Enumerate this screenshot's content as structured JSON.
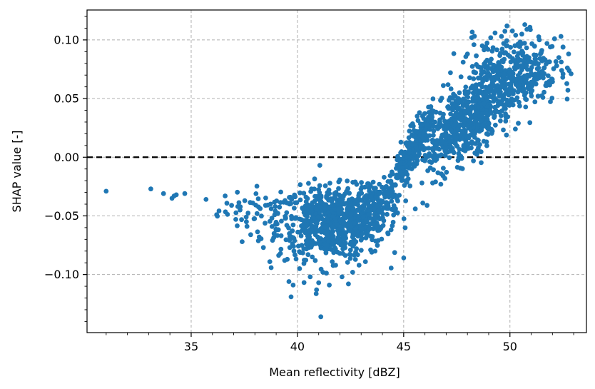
{
  "chart_data": {
    "type": "scatter",
    "title": "",
    "xlabel": "Mean reflectivity [dBZ]",
    "ylabel": "SHAP value [-]",
    "xlim": [
      30.1,
      53.6
    ],
    "ylim": [
      -0.1495,
      0.1255
    ],
    "xticks": [
      35,
      40,
      45,
      50
    ],
    "xtick_labels": [
      "35",
      "40",
      "45",
      "50"
    ],
    "yticks": [
      0.1,
      0.05,
      0.0,
      -0.05,
      -0.1
    ],
    "ytick_labels": [
      "0.10",
      "0.05",
      "0.00",
      "−0.05",
      "−0.10"
    ],
    "grid": true,
    "grid_style": "dashed",
    "reference_line": {
      "y": 0.0,
      "style": "dashed",
      "color": "#000000"
    },
    "marker_color": "#1f77b4",
    "points_listed": [
      [
        31.0,
        -0.029
      ],
      [
        33.1,
        -0.027
      ],
      [
        33.7,
        -0.031
      ],
      [
        34.1,
        -0.035
      ],
      [
        34.2,
        -0.033
      ],
      [
        34.3,
        -0.032
      ],
      [
        34.7,
        -0.031
      ],
      [
        35.7,
        -0.036
      ],
      [
        36.2,
        -0.049
      ],
      [
        36.6,
        -0.033
      ],
      [
        36.9,
        -0.041
      ],
      [
        37.1,
        -0.053
      ],
      [
        37.3,
        -0.045
      ],
      [
        37.4,
        -0.072
      ],
      [
        37.6,
        -0.055
      ],
      [
        37.8,
        -0.066
      ],
      [
        37.9,
        -0.039
      ],
      [
        38.1,
        -0.048
      ],
      [
        38.2,
        -0.068
      ],
      [
        38.4,
        -0.077
      ],
      [
        38.5,
        -0.041
      ],
      [
        38.7,
        -0.089
      ],
      [
        38.8,
        -0.052
      ],
      [
        39.0,
        -0.062
      ],
      [
        39.2,
        -0.082
      ],
      [
        39.4,
        -0.088
      ],
      [
        39.5,
        -0.058
      ],
      [
        39.6,
        -0.106
      ],
      [
        39.7,
        -0.119
      ],
      [
        39.8,
        -0.109
      ],
      [
        40.1,
        -0.095
      ],
      [
        40.3,
        -0.078
      ],
      [
        40.5,
        -0.083
      ],
      [
        40.6,
        -0.102
      ],
      [
        40.7,
        -0.085
      ],
      [
        40.9,
        -0.113
      ],
      [
        41.0,
        -0.107
      ],
      [
        41.1,
        -0.136
      ],
      [
        41.2,
        -0.098
      ],
      [
        41.5,
        -0.109
      ],
      [
        41.8,
        -0.092
      ],
      [
        42.1,
        -0.102
      ],
      [
        42.4,
        -0.108
      ],
      [
        42.6,
        -0.098
      ],
      [
        42.9,
        -0.092
      ],
      [
        43.2,
        -0.089
      ],
      [
        43.5,
        -0.081
      ],
      [
        43.8,
        -0.071
      ],
      [
        45.9,
        -0.039
      ],
      [
        46.1,
        -0.041
      ],
      [
        46.5,
        -0.021
      ],
      [
        47.2,
        0.072
      ],
      [
        47.8,
        0.081
      ],
      [
        48.0,
        0.088
      ],
      [
        48.2,
        0.102
      ],
      [
        48.7,
        0.095
      ],
      [
        49.3,
        0.106
      ],
      [
        49.6,
        0.103
      ],
      [
        49.8,
        0.089
      ],
      [
        50.4,
        0.095
      ],
      [
        50.6,
        0.087
      ],
      [
        50.7,
        0.113
      ],
      [
        50.8,
        0.109
      ],
      [
        51.2,
        0.082
      ],
      [
        51.5,
        0.091
      ],
      [
        51.9,
        0.094
      ],
      [
        52.1,
        0.101
      ],
      [
        52.2,
        0.078
      ],
      [
        52.3,
        0.085
      ],
      [
        52.4,
        0.103
      ],
      [
        52.5,
        0.094
      ],
      [
        52.5,
        0.071
      ],
      [
        50.3,
        0.065
      ],
      [
        51.0,
        0.064
      ],
      [
        51.6,
        0.076
      ],
      [
        49.1,
        0.043
      ],
      [
        48.5,
        0.034
      ],
      [
        47.5,
        0.016
      ],
      [
        47.0,
        0.016
      ],
      [
        46.6,
        0.012
      ]
    ],
    "clusters": [
      {
        "region": "low_tail",
        "x_mean": 38.5,
        "x_sd": 1.1,
        "y_mean": -0.045,
        "y_sd": 0.01,
        "count": 45
      },
      {
        "region": "neg_body",
        "x_mean": 41.6,
        "x_sd": 1.25,
        "y_mean": -0.056,
        "y_sd": 0.015,
        "count": 650
      },
      {
        "region": "neg_band",
        "x_mean": 43.5,
        "x_sd": 0.7,
        "y_mean": -0.042,
        "y_sd": 0.01,
        "count": 180
      },
      {
        "region": "transition",
        "x_mean": 45.3,
        "x_sd": 0.65,
        "y_mean": 0.002,
        "y_sd": 0.012,
        "count": 250
      },
      {
        "region": "pos_body",
        "x_mean": 48.2,
        "x_sd": 1.2,
        "y_mean": 0.04,
        "y_sd": 0.016,
        "count": 650
      },
      {
        "region": "pos_high",
        "x_mean": 50.3,
        "x_sd": 1.0,
        "y_mean": 0.075,
        "y_sd": 0.015,
        "count": 280
      }
    ]
  }
}
